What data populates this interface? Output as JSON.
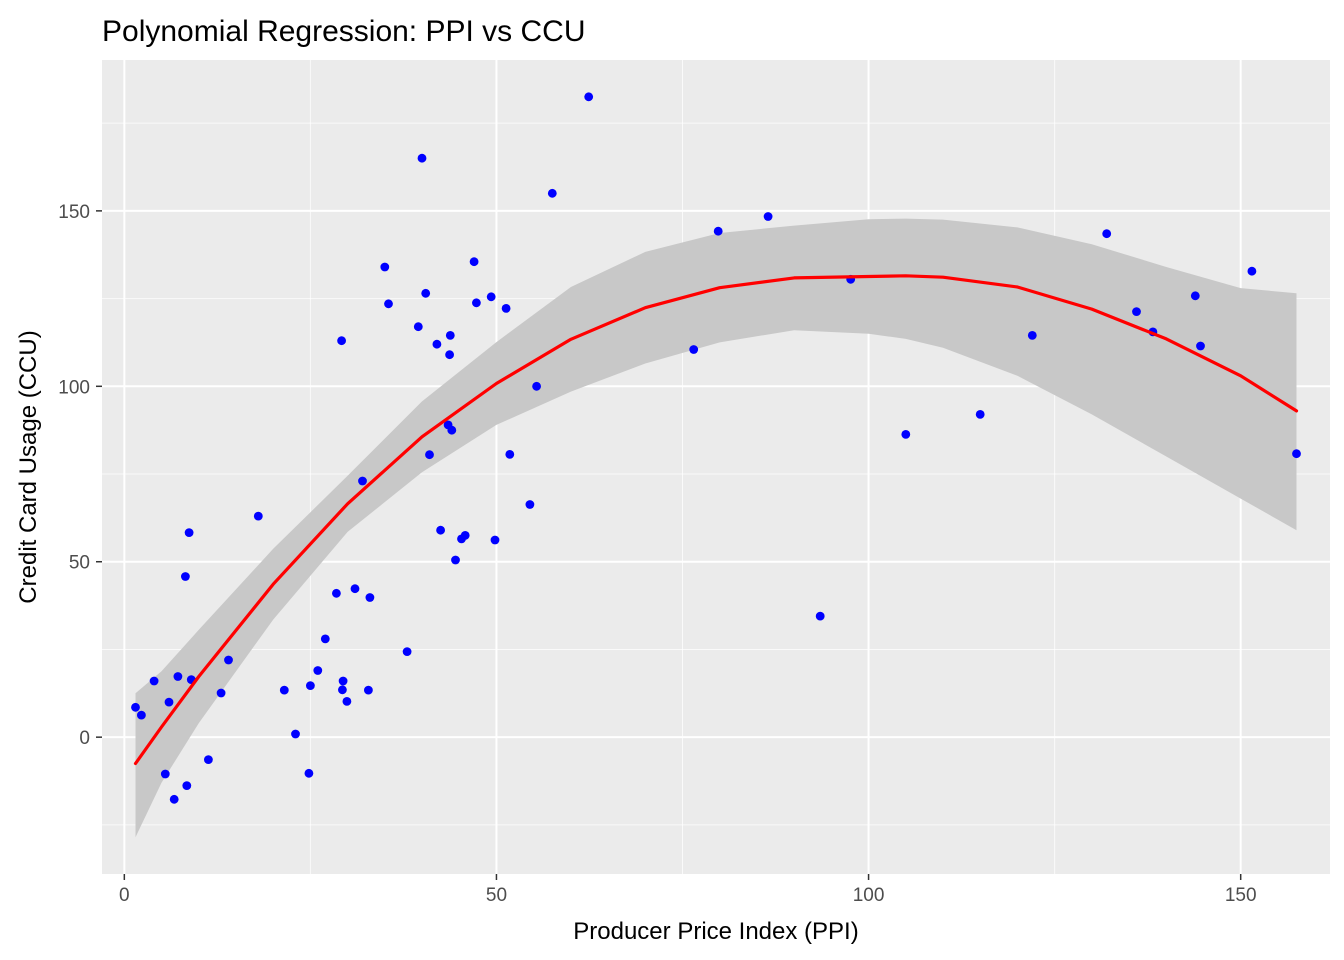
{
  "chart_data": {
    "type": "scatter",
    "title": "Polynomial Regression: PPI vs CCU",
    "xlabel": "Producer Price Index (PPI)",
    "ylabel": "Credit Card Usage (CCU)",
    "xlim": [
      -3,
      162
    ],
    "ylim": [
      -39,
      193
    ],
    "x_ticks": [
      0,
      50,
      100,
      150
    ],
    "y_ticks": [
      0,
      50,
      100,
      150
    ],
    "x_tick_labels": [
      "0",
      "50",
      "100",
      "150"
    ],
    "y_tick_labels": [
      "0",
      "50",
      "100",
      "150"
    ],
    "grid": true,
    "legend": "none",
    "colors": {
      "panel_background": "#ebebeb",
      "grid_major": "#ffffff",
      "points": "#0000ff",
      "fit_line": "#ff0000",
      "confidence_band": "#c8c8c8"
    },
    "points": [
      {
        "x": 1.5,
        "y": 8.5
      },
      {
        "x": 2.3,
        "y": 6.3
      },
      {
        "x": 4.0,
        "y": 16.0
      },
      {
        "x": 5.5,
        "y": -10.5
      },
      {
        "x": 6.0,
        "y": 10.0
      },
      {
        "x": 6.7,
        "y": -17.7
      },
      {
        "x": 7.2,
        "y": 17.3
      },
      {
        "x": 8.2,
        "y": 45.8
      },
      {
        "x": 8.4,
        "y": -13.8
      },
      {
        "x": 8.7,
        "y": 58.3
      },
      {
        "x": 9.0,
        "y": 16.4
      },
      {
        "x": 11.3,
        "y": -6.4
      },
      {
        "x": 13.0,
        "y": 12.6
      },
      {
        "x": 14.0,
        "y": 22.0
      },
      {
        "x": 18.0,
        "y": 63.0
      },
      {
        "x": 21.5,
        "y": 13.4
      },
      {
        "x": 23.0,
        "y": 0.9
      },
      {
        "x": 24.8,
        "y": -10.3
      },
      {
        "x": 25.0,
        "y": 14.7
      },
      {
        "x": 26.0,
        "y": 19.0
      },
      {
        "x": 27.0,
        "y": 28.0
      },
      {
        "x": 28.5,
        "y": 41.0
      },
      {
        "x": 29.2,
        "y": 113.0
      },
      {
        "x": 29.3,
        "y": 13.5
      },
      {
        "x": 29.4,
        "y": 16.0
      },
      {
        "x": 29.9,
        "y": 10.2
      },
      {
        "x": 31.0,
        "y": 42.3
      },
      {
        "x": 32.0,
        "y": 73.0
      },
      {
        "x": 32.8,
        "y": 13.4
      },
      {
        "x": 33.0,
        "y": 39.8
      },
      {
        "x": 35.0,
        "y": 134.0
      },
      {
        "x": 35.5,
        "y": 123.5
      },
      {
        "x": 38.0,
        "y": 24.4
      },
      {
        "x": 39.5,
        "y": 117.0
      },
      {
        "x": 40.0,
        "y": 165.0
      },
      {
        "x": 40.5,
        "y": 126.5
      },
      {
        "x": 41.0,
        "y": 80.5
      },
      {
        "x": 42.0,
        "y": 112.0
      },
      {
        "x": 42.5,
        "y": 59.0
      },
      {
        "x": 43.5,
        "y": 89.0
      },
      {
        "x": 43.7,
        "y": 109.0
      },
      {
        "x": 43.8,
        "y": 114.5
      },
      {
        "x": 44.0,
        "y": 87.5
      },
      {
        "x": 44.5,
        "y": 50.5
      },
      {
        "x": 45.3,
        "y": 56.5
      },
      {
        "x": 45.8,
        "y": 57.5
      },
      {
        "x": 47.0,
        "y": 135.5
      },
      {
        "x": 47.3,
        "y": 123.8
      },
      {
        "x": 49.3,
        "y": 125.5
      },
      {
        "x": 49.8,
        "y": 56.2
      },
      {
        "x": 51.3,
        "y": 122.2
      },
      {
        "x": 51.8,
        "y": 80.6
      },
      {
        "x": 54.5,
        "y": 66.3
      },
      {
        "x": 55.4,
        "y": 100.0
      },
      {
        "x": 57.5,
        "y": 155.0
      },
      {
        "x": 62.4,
        "y": 182.5
      },
      {
        "x": 76.5,
        "y": 110.5
      },
      {
        "x": 79.8,
        "y": 144.2
      },
      {
        "x": 86.5,
        "y": 148.4
      },
      {
        "x": 93.5,
        "y": 34.5
      },
      {
        "x": 97.6,
        "y": 130.5
      },
      {
        "x": 105.0,
        "y": 86.3
      },
      {
        "x": 115.0,
        "y": 92.0
      },
      {
        "x": 122.0,
        "y": 114.5
      },
      {
        "x": 132.0,
        "y": 143.5
      },
      {
        "x": 136.0,
        "y": 121.3
      },
      {
        "x": 138.2,
        "y": 115.5
      },
      {
        "x": 143.9,
        "y": 125.8
      },
      {
        "x": 144.6,
        "y": 111.5
      },
      {
        "x": 151.5,
        "y": 132.8
      },
      {
        "x": 157.5,
        "y": 80.8
      }
    ],
    "fit": {
      "x": [
        1.5,
        5,
        10,
        20,
        30,
        40,
        50,
        60,
        70,
        80,
        90,
        100,
        105,
        110,
        120,
        130,
        140,
        150,
        157.5
      ],
      "y": [
        -7.5,
        2.9,
        17.3,
        43.6,
        66.5,
        85.6,
        100.8,
        113.4,
        122.4,
        128.1,
        130.9,
        131.3,
        131.5,
        131.1,
        128.3,
        122.0,
        113.5,
        103.0,
        93.0
      ],
      "lower": [
        -28.5,
        -13.0,
        4.0,
        33.5,
        58.5,
        75.5,
        89.0,
        98.5,
        106.5,
        112.5,
        116.0,
        115.0,
        113.5,
        111.0,
        103.0,
        92.0,
        80.0,
        68.0,
        59.0
      ],
      "upper": [
        12.5,
        18.8,
        30.6,
        53.7,
        74.5,
        95.7,
        112.6,
        128.3,
        138.3,
        143.7,
        145.8,
        147.6,
        147.8,
        147.5,
        145.3,
        140.5,
        134.0,
        128.0,
        126.5
      ]
    }
  }
}
